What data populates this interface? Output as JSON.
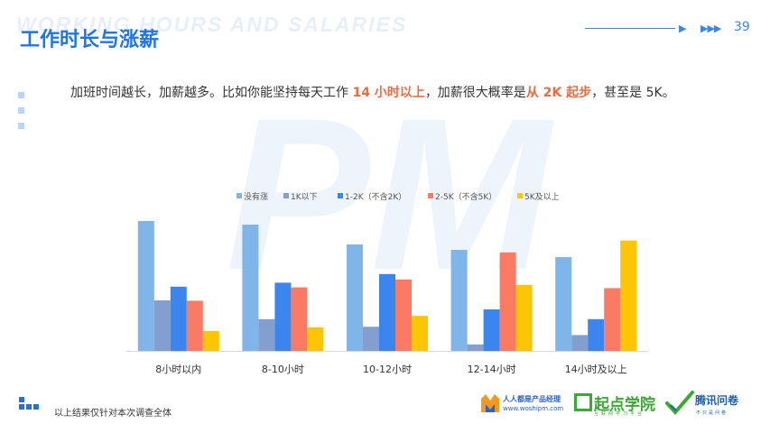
{
  "header": {
    "watermark": "WORKING HOURS AND SALARIES",
    "title": "工作时长与涨薪",
    "page_number": "39"
  },
  "description": {
    "part1": "加班时间越长，加薪越多。比如你能坚持每天工作 ",
    "highlight1": "14 小时以上",
    "part2": "，加薪很大概率是",
    "highlight2": "从 2K 起步",
    "part3": "，甚至是 5K。"
  },
  "footer": {
    "note": "以上结果仅针对本次调查全体",
    "logo1_name": "人人都是产品经理",
    "logo1_url": "www.woshipm.com",
    "logo2_name": "起点学院",
    "logo2_tagline": "互联网学习平台",
    "logo3_name": "腾讯问卷",
    "logo3_tagline": "不只是问卷",
    "watermark_pm": "PM"
  },
  "colors": {
    "accent": "#1f74e8",
    "highlight": "#f06b3e"
  },
  "chart_data": {
    "type": "bar",
    "title": "",
    "xlabel": "",
    "ylabel": "",
    "legend": "top-center",
    "grid": false,
    "ylim": [
      0,
      40
    ],
    "categories": [
      "8小时以内",
      "8-10小时",
      "10-12小时",
      "12-14小时",
      "14小时及以上"
    ],
    "series": [
      {
        "name": "没有涨",
        "color": "#7fb5e8",
        "values": [
          36,
          35,
          29.5,
          28,
          26
        ]
      },
      {
        "name": "1K以下",
        "color": "#839fd0",
        "values": [
          14,
          8.8,
          6.7,
          1.8,
          4.4
        ]
      },
      {
        "name": "1-2K（不含2K）",
        "color": "#3b86ee",
        "values": [
          17.8,
          18.9,
          21.3,
          11.5,
          8.8
        ]
      },
      {
        "name": "2-5K（不含5K）",
        "color": "#fb7a63",
        "values": [
          13.9,
          17.6,
          19.8,
          27.3,
          17.4
        ]
      },
      {
        "name": "5K及以上",
        "color": "#fdc503",
        "values": [
          5.5,
          6.5,
          9.7,
          18.3,
          30.6
        ]
      }
    ]
  }
}
